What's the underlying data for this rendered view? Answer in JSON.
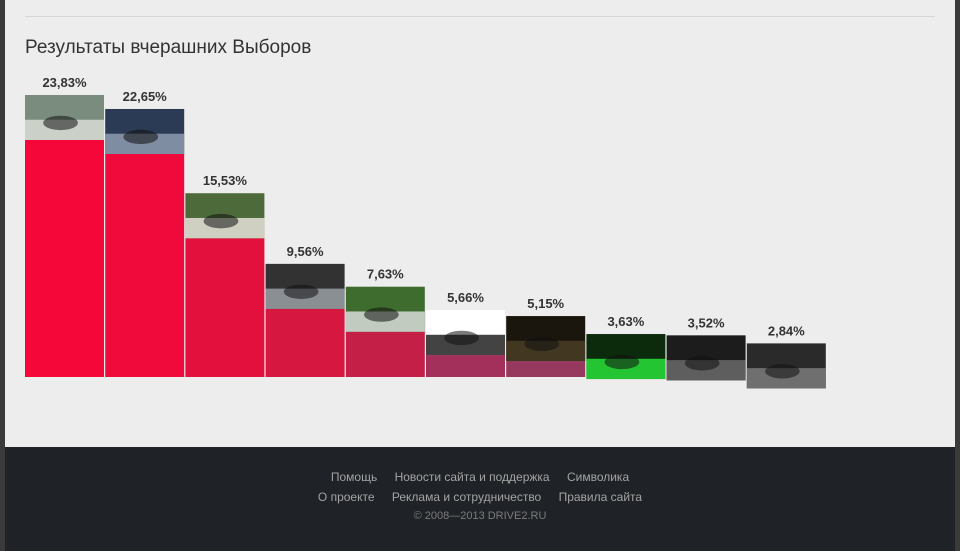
{
  "title": "Результаты вчерашних Выборов",
  "chart_data": {
    "type": "bar",
    "title": "Результаты вчерашних Выборов",
    "categories": [
      "",
      "",
      "",
      "",
      "",
      "",
      "",
      "",
      "",
      ""
    ],
    "values": [
      23.83,
      22.65,
      15.53,
      9.56,
      7.63,
      5.66,
      5.15,
      3.63,
      3.52,
      2.84
    ],
    "labels": [
      "23,83%",
      "22,65%",
      "15,53%",
      "9,56%",
      "7,63%",
      "5,66%",
      "5,15%",
      "3,63%",
      "3,52%",
      "2,84%"
    ],
    "bar_colors": [
      "#f6073a",
      "#f00a3b",
      "#e3103d",
      "#d6173f",
      "#c31f47",
      "#a3305a",
      "#97385e",
      "#84476c",
      "#705470",
      "#5c6380"
    ],
    "photo_icons": [
      "car-in-water-photo",
      "blue-car-on-road-photo",
      "black-car-in-parking-photo",
      "girl-with-car-photo",
      "white-sedan-photo",
      "black-minivan-photo",
      "car-at-night-photo",
      "green-lit-room-photo",
      "car-front-photo",
      "car-headlight-photo"
    ],
    "ylim": [
      0,
      23.83
    ],
    "grid": false,
    "legend": "none"
  },
  "footer": {
    "row1": [
      "Помощь",
      "Новости сайта и поддержка",
      "Символика"
    ],
    "row2": [
      "О проекте",
      "Реклама и сотрудничество",
      "Правила сайта"
    ],
    "copyright": "© 2008—2013 DRIVE2.RU"
  }
}
